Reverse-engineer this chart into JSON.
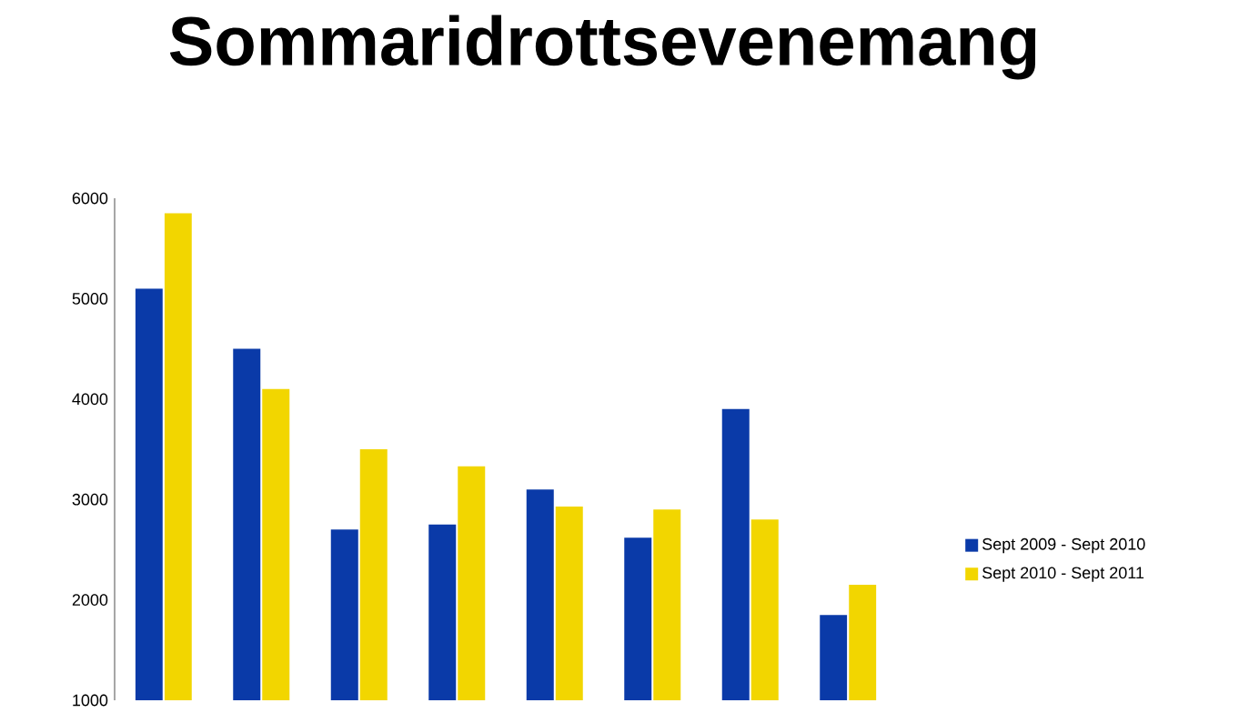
{
  "chart_data": {
    "type": "bar",
    "title": "Sommaridrottsevenemang",
    "categories": [
      null,
      null,
      null,
      null,
      null,
      null,
      null,
      null
    ],
    "series": [
      {
        "name": "Sept 2009 - Sept 2010",
        "color": "#0a3aa8",
        "values": [
          5100,
          4500,
          2700,
          2750,
          3100,
          2620,
          3900,
          1850
        ]
      },
      {
        "name": "Sept 2010 - Sept 2011",
        "color": "#f2d600",
        "values": [
          5850,
          4100,
          3500,
          3330,
          2930,
          2900,
          2800,
          2150
        ]
      }
    ],
    "ylim": [
      1000,
      6000
    ],
    "yticks": [
      1000,
      2000,
      3000,
      4000,
      5000,
      6000
    ],
    "legend": "right",
    "grid": false
  }
}
